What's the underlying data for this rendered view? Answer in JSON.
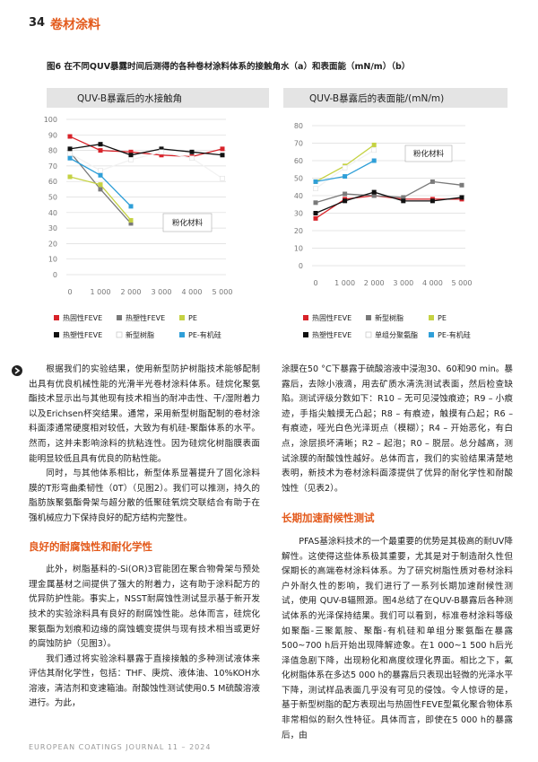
{
  "header": {
    "page_number": "34",
    "section": "卷材涂料"
  },
  "figure": {
    "caption": "图6 在不同QUV暴露时间后测得的各种卷材涂料体系的接触角水（a）和表面能（mN/m）（b）"
  },
  "chart_data": [
    {
      "type": "line",
      "title": "QUV-B暴露后的水接触角",
      "annotation": "粉化材料",
      "grid": true,
      "x": [
        0,
        1000,
        2000,
        3000,
        4000,
        5000
      ],
      "xlim": [
        0,
        5000
      ],
      "xticks": [
        0,
        {
          "value": 1000,
          "label": "1 000"
        },
        {
          "value": 2000,
          "label": "2 000"
        },
        {
          "value": 3000,
          "label": "3 000"
        },
        {
          "value": 4000,
          "label": "4 000"
        },
        {
          "value": 5000,
          "label": "5 000"
        }
      ],
      "ylim": [
        0,
        100
      ],
      "yticks": [
        0,
        10,
        20,
        30,
        40,
        50,
        60,
        70,
        80,
        90,
        100
      ],
      "series": [
        {
          "name": "热固性FEVE",
          "color": "#d8232a",
          "values": [
            89,
            80,
            79,
            77,
            76,
            81
          ]
        },
        {
          "name": "热塑性FEVE",
          "color": "#7a7a7a",
          "values": [
            79,
            55,
            33,
            null,
            null,
            null
          ]
        },
        {
          "name": "PE",
          "color": "#c5d243",
          "values": [
            63,
            58,
            35,
            null,
            null,
            null
          ]
        },
        {
          "name": "热塑性FEVE",
          "color": "#111111",
          "values": [
            81,
            84,
            77,
            81,
            79,
            77
          ]
        },
        {
          "name": "新型树脂",
          "color": "#ffffff",
          "values": [
            78,
            67,
            74,
            79,
            75,
            62
          ]
        },
        {
          "name": "PE-有机硅",
          "color": "#2f9fd8",
          "values": [
            75,
            64,
            44,
            null,
            null,
            null
          ]
        }
      ]
    },
    {
      "type": "line",
      "title": "QUV-B暴露后的表面能/(mN/m)",
      "annotation": "粉化材料",
      "grid": true,
      "x": [
        0,
        1000,
        2000,
        3000,
        4000,
        5000
      ],
      "xlim": [
        0,
        5000
      ],
      "xticks": [
        0,
        {
          "value": 1000,
          "label": "1 000"
        },
        {
          "value": 2000,
          "label": "2 000"
        },
        {
          "value": 3000,
          "label": "3 000"
        },
        {
          "value": 4000,
          "label": "4 000"
        },
        {
          "value": 5000,
          "label": "5 000"
        }
      ],
      "ylim": [
        0,
        80
      ],
      "yticks": [
        0,
        10,
        20,
        30,
        40,
        50,
        60,
        70,
        80
      ],
      "series": [
        {
          "name": "热固性FEVE",
          "color": "#d8232a",
          "values": [
            27,
            38,
            40,
            38,
            38,
            38
          ]
        },
        {
          "name": "新型树脂",
          "color": "#7a7a7a",
          "values": [
            36,
            41,
            40,
            39,
            48,
            46
          ]
        },
        {
          "name": "PE",
          "color": "#c5d243",
          "values": [
            48,
            57,
            69,
            null,
            null,
            null
          ]
        },
        {
          "name": "热塑性FEVE",
          "color": "#111111",
          "values": [
            30,
            37,
            42,
            37,
            37,
            39
          ]
        },
        {
          "name": "单组分聚氨酯",
          "color": "#ffffff",
          "values": [
            44,
            56,
            66,
            null,
            null,
            null
          ]
        },
        {
          "name": "PE-有机硅",
          "color": "#2f9fd8",
          "values": [
            48,
            51,
            60,
            null,
            null,
            null
          ]
        }
      ]
    }
  ],
  "left_column": {
    "paragraphs": [
      "根据我们的实验结果，使用新型防护树脂技术能够配制出具有优良机械性能的光滑半光卷材涂料体系。硅烷化聚氨酯技术显示出与其他现有技术相当的耐冲击性、干/湿附着力以及Erichsen杯突结果。通常，采用新型树脂配制的卷材涂料面漆通常硬度相对较低，大致为有机硅-聚酯体系的水平。然而，这并未影响涂料的抗粘连性。因为硅烷化树脂膜表面能明显较低且具有优良的防粘性能。",
      "同时，与其他体系相比，新型体系显著提升了固化涂料膜的T形弯曲柔韧性（0T）（见图2）。我们可以推测，持久的脂肪族聚氨酯骨架与超分散的低聚硅氧烷交联结合有助于在强机械应力下保持良好的配方结构完整性。"
    ],
    "heading": "良好的耐腐蚀性和耐化学性",
    "paragraphs_after": [
      "此外，树脂基料的-Si(OR)3官能团在聚合物骨架与预处理金属基材之间提供了强大的附着力，这有助于涂料配方的优异防护性能。事实上，NSST耐腐蚀性测试显示基于新开发技术的实验涂料具有良好的耐腐蚀性能。总体而言，硅烷化聚氨酯为划痕和边缘的腐蚀蠕变提供与现有技术相当或更好的腐蚀防护（见图3）。",
      "我们通过将实验涂料暴露于直接接触的多种测试液体来评估其耐化学性，包括：THF、庚烷、液体油、10%KOH水溶液，清洁剂和变速箱油。耐酸蚀性测试使用0.5 M硫酸溶液进行。为此，"
    ]
  },
  "right_column": {
    "paragraphs": [
      "涂膜在50 °C下暴露于硫酸溶液中浸泡30、60和90 min。暴露后，去除小液滴，用去矿质水清洗测试表面，然后检查缺陷。测试评级分数如下：R10 – 无可见浸蚀痕迹；R9 – 小痕迹，手指尖触摸无凸起；R8 – 有痕迹，触摸有凸起；R6 – 有痕迹，哑光白色光泽斑点（模糊）；R4 – 开始恶化，有白点，涂层损坏清晰；R2 – 起泡；R0 – 脱层。总分越高，测试涂膜的耐酸蚀性越好。总体而言，我们的实验结果清楚地表明，新技术为卷材涂料面漆提供了优异的耐化学性和耐酸蚀性（见表2）。"
    ],
    "heading": "长期加速耐候性测试",
    "paragraphs_after": [
      "PFAS基涂料技术的一个最重要的优势是其极高的耐UV降解性。这使得这些体系极其重要，尤其是对于制造耐久性但保期长的高端卷材涂料体系。为了研究树脂性质对卷材涂料户外耐久性的影响，我们进行了一系列长期加速耐候性测试，使用 QUV-B辐照源。图4总结了在QUV-B暴露后各种测试体系的光泽保持结果。我们可以看到，标准卷材涂料等级如聚酯-三聚氰胺、聚酯-有机硅和单组分聚氨酯在暴露500~700 h后开始出现降解迹象。在1 000~1 500 h后光泽值急剧下降，出现粉化和高度纹理化界面。相比之下，氟化树脂体系在多达5 000 h的暴露后只表现出轻微的光泽水平下降，测试样品表面几乎没有可见的侵蚀。令人惊讶的是，基于新型树脂的配方表现出与热固性FEVE型氟化聚合物体系非常相似的耐久性特征。具体而言，即使在5 000 h的暴露后，由"
    ]
  },
  "footer": "EUROPEAN COATINGS JOURNAL 11 – 2024"
}
